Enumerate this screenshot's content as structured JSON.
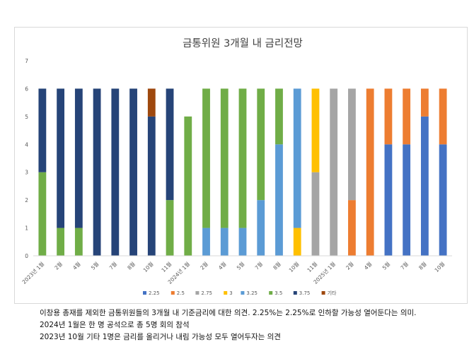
{
  "chart_data": {
    "type": "bar",
    "stacked": true,
    "title": "금통위원 3개월 내 금리전망",
    "ylim": [
      0,
      7
    ],
    "yticks": [
      0,
      1,
      2,
      3,
      4,
      5,
      6,
      7
    ],
    "grid": false,
    "legend_position": "bottom",
    "categories": [
      "2023년 1월",
      "2월",
      "4월",
      "5월",
      "7월",
      "8월",
      "10월",
      "11월",
      "2024년 1월",
      "2월",
      "4월",
      "5월",
      "7월",
      "8월",
      "10월",
      "11월",
      "2025년 1월",
      "2월",
      "4월",
      "5월",
      "7월",
      "8월",
      "10월"
    ],
    "series": [
      {
        "name": "2.25",
        "color": "#4472C4",
        "values": [
          0,
          0,
          0,
          0,
          0,
          0,
          0,
          0,
          0,
          0,
          0,
          0,
          0,
          0,
          0,
          0,
          0,
          0,
          0,
          4,
          4,
          5,
          4
        ]
      },
      {
        "name": "2.5",
        "color": "#ED7D31",
        "values": [
          0,
          0,
          0,
          0,
          0,
          0,
          0,
          0,
          0,
          0,
          0,
          0,
          0,
          0,
          0,
          0,
          0,
          2,
          6,
          2,
          2,
          1,
          2
        ]
      },
      {
        "name": "2.75",
        "color": "#A5A5A5",
        "values": [
          0,
          0,
          0,
          0,
          0,
          0,
          0,
          0,
          0,
          0,
          0,
          0,
          0,
          0,
          0,
          3,
          6,
          4,
          0,
          0,
          0,
          0,
          0
        ]
      },
      {
        "name": "3",
        "color": "#FFC000",
        "values": [
          0,
          0,
          0,
          0,
          0,
          0,
          0,
          0,
          0,
          0,
          0,
          0,
          0,
          0,
          1,
          3,
          0,
          0,
          0,
          0,
          0,
          0,
          0
        ]
      },
      {
        "name": "3.25",
        "color": "#5B9BD5",
        "values": [
          0,
          0,
          0,
          0,
          0,
          0,
          0,
          0,
          0,
          1,
          1,
          1,
          2,
          4,
          5,
          0,
          0,
          0,
          0,
          0,
          0,
          0,
          0
        ]
      },
      {
        "name": "3.5",
        "color": "#70AD47",
        "values": [
          3,
          1,
          1,
          0,
          0,
          0,
          0,
          2,
          5,
          5,
          5,
          5,
          4,
          2,
          0,
          0,
          0,
          0,
          0,
          0,
          0,
          0,
          0
        ]
      },
      {
        "name": "3.75",
        "color": "#264478",
        "values": [
          3,
          5,
          5,
          6,
          6,
          6,
          5,
          4,
          0,
          0,
          0,
          0,
          0,
          0,
          0,
          0,
          0,
          0,
          0,
          0,
          0,
          0,
          0
        ]
      },
      {
        "name": "기타",
        "color": "#9E480E",
        "values": [
          0,
          0,
          0,
          0,
          0,
          0,
          1,
          0,
          0,
          0,
          0,
          0,
          0,
          0,
          0,
          0,
          0,
          0,
          0,
          0,
          0,
          0,
          0
        ]
      }
    ]
  },
  "notes": [
    "이창용 총재를 제외한 금통위원들의 3개월 내 기준금리에 대한 의견. 2.25%는 2.25%로 인하할 가능성 열어둔다는 의미.",
    "2024년 1월은 한 명 공석으로 총 5명 회의 참석",
    "2023년 10월 기타 1명은 금리를 올리거나 내림 가능성 모두 열어두자는 의견"
  ]
}
